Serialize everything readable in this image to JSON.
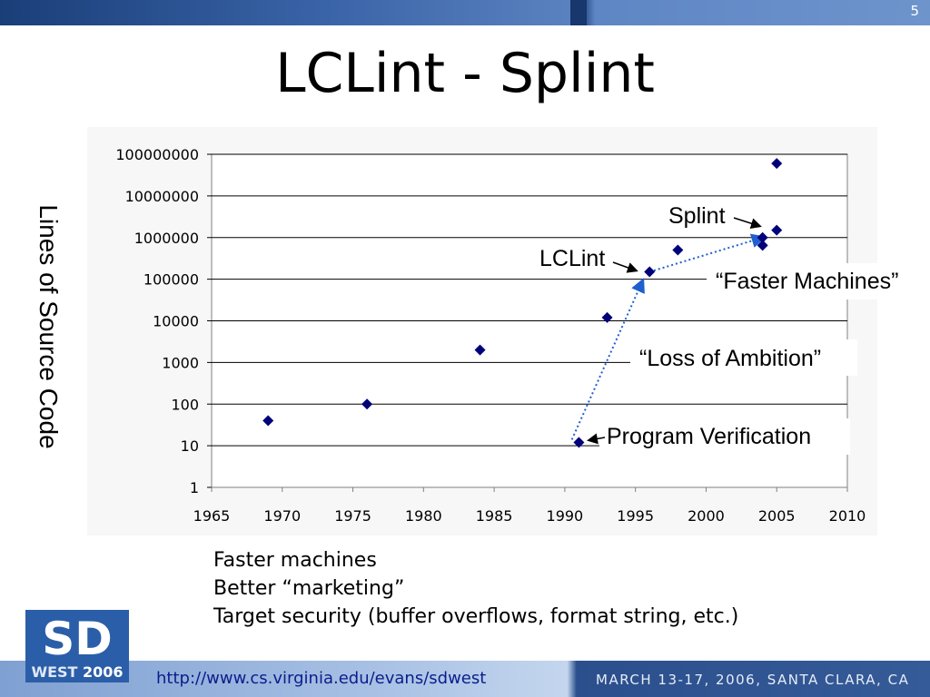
{
  "slide": {
    "number": "5",
    "title": "LCLint - Splint"
  },
  "footer": {
    "url": "http://www.cs.virginia.edu/evans/sdwest",
    "conference": "MARCH 13-17, 2006, SANTA CLARA, CA",
    "logo": {
      "letters": "SD",
      "line1": "WEST",
      "line2": "2006"
    }
  },
  "bullets": [
    "Faster machines",
    "Better “marketing”",
    "Target security (buffer overflows, format string, etc.)"
  ],
  "colors": {
    "marker": "#00007a",
    "arrow": "#1f5fd0",
    "grid": "#000000",
    "band": "#2b5ea8"
  },
  "chart_data": {
    "type": "scatter",
    "title": "",
    "xlabel": "",
    "ylabel": "Lines of Source Code",
    "xlim": [
      1965,
      2010
    ],
    "ylim": [
      1,
      100000000
    ],
    "yscale": "log",
    "grid": true,
    "x_ticks": [
      "1965",
      "1970",
      "1975",
      "1980",
      "1985",
      "1990",
      "1995",
      "2000",
      "2005",
      "2010"
    ],
    "y_ticks": [
      "1",
      "10",
      "100",
      "1000",
      "10000",
      "100000",
      "1000000",
      "10000000",
      "100000000"
    ],
    "points": [
      {
        "x": 1969,
        "y": 40
      },
      {
        "x": 1976,
        "y": 100
      },
      {
        "x": 1984,
        "y": 2000
      },
      {
        "x": 1991,
        "y": 12
      },
      {
        "x": 1993,
        "y": 12000
      },
      {
        "x": 1996,
        "y": 150000
      },
      {
        "x": 1998,
        "y": 500000
      },
      {
        "x": 2004,
        "y": 650000
      },
      {
        "x": 2004,
        "y": 1000000
      },
      {
        "x": 2005,
        "y": 1500000
      },
      {
        "x": 2005,
        "y": 60000000
      }
    ],
    "trend_arrows": [
      {
        "from": {
          "x": 1990.5,
          "y": 14
        },
        "to": {
          "x": 1995.5,
          "y": 90000
        }
      },
      {
        "from": {
          "x": 1996,
          "y": 150000
        },
        "to": {
          "x": 2004,
          "y": 1000000
        }
      }
    ],
    "annotations": [
      {
        "text": "Splint",
        "target": {
          "x": 2004,
          "y": 1000000
        }
      },
      {
        "text": "LCLint",
        "target": {
          "x": 1996,
          "y": 150000
        }
      },
      {
        "text": "“Faster Machines”"
      },
      {
        "text": "“Loss of Ambition”"
      },
      {
        "text": "Program Verification",
        "target": {
          "x": 1991,
          "y": 12
        }
      }
    ]
  }
}
